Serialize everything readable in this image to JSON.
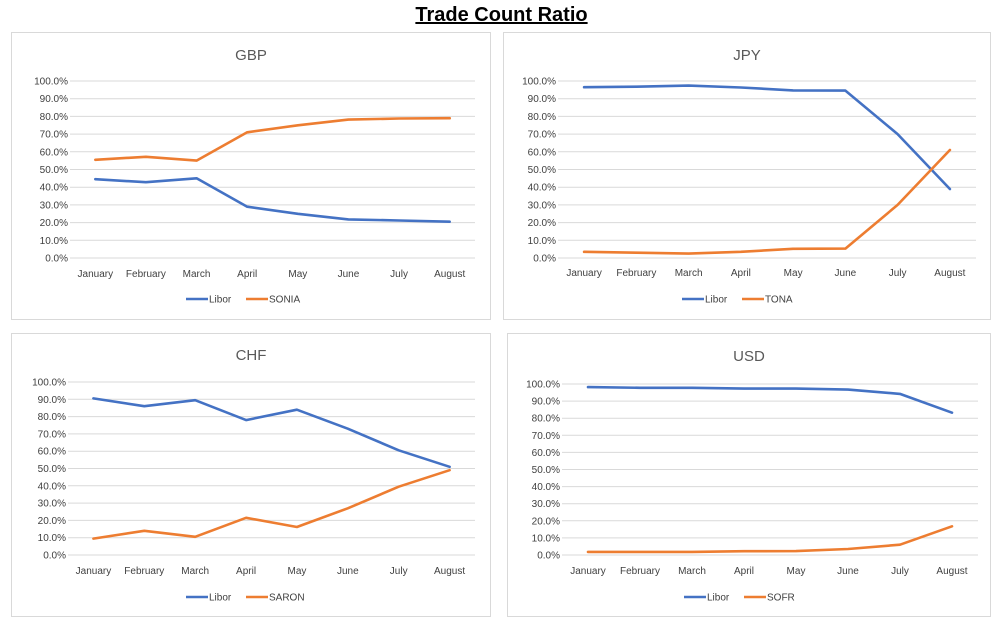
{
  "title": "Trade Count Ratio",
  "colors": {
    "libor": "#4472c4",
    "rfr": "#ed7d31"
  },
  "chart_data": [
    {
      "type": "line",
      "title": "GBP",
      "categories": [
        "January",
        "February",
        "March",
        "April",
        "May",
        "June",
        "July",
        "August"
      ],
      "y_ticks": [
        "0.0%",
        "10.0%",
        "20.0%",
        "30.0%",
        "40.0%",
        "50.0%",
        "60.0%",
        "70.0%",
        "80.0%",
        "90.0%",
        "100.0%"
      ],
      "ylim": [
        0,
        100
      ],
      "legend_position": "bottom",
      "series": [
        {
          "name": "Libor",
          "values": [
            44.5,
            42.8,
            45.0,
            29.0,
            25.0,
            21.8,
            21.2,
            20.5
          ]
        },
        {
          "name": "SONIA",
          "values": [
            55.5,
            57.2,
            55.0,
            71.0,
            75.0,
            78.2,
            78.8,
            79.0
          ]
        }
      ]
    },
    {
      "type": "line",
      "title": "JPY",
      "categories": [
        "January",
        "February",
        "March",
        "April",
        "May",
        "June",
        "July",
        "August"
      ],
      "y_ticks": [
        "0.0%",
        "10.0%",
        "20.0%",
        "30.0%",
        "40.0%",
        "50.0%",
        "60.0%",
        "70.0%",
        "80.0%",
        "90.0%",
        "100.0%"
      ],
      "ylim": [
        0,
        100
      ],
      "legend_position": "bottom",
      "series": [
        {
          "name": "Libor",
          "values": [
            96.5,
            96.8,
            97.4,
            96.3,
            94.7,
            94.6,
            70.0,
            39.0
          ]
        },
        {
          "name": "TONA",
          "values": [
            3.5,
            3.0,
            2.5,
            3.5,
            5.2,
            5.3,
            30.0,
            61.0
          ]
        }
      ]
    },
    {
      "type": "line",
      "title": "CHF",
      "categories": [
        "January",
        "February",
        "March",
        "April",
        "May",
        "June",
        "July",
        "August"
      ],
      "y_ticks": [
        "0.0%",
        "10.0%",
        "20.0%",
        "30.0%",
        "40.0%",
        "50.0%",
        "60.0%",
        "70.0%",
        "80.0%",
        "90.0%",
        "100.0%"
      ],
      "ylim": [
        0,
        100
      ],
      "legend_position": "bottom",
      "series": [
        {
          "name": "Libor",
          "values": [
            90.5,
            86.0,
            89.5,
            78.0,
            84.0,
            73.0,
            60.5,
            51.0
          ]
        },
        {
          "name": "SARON",
          "values": [
            9.5,
            14.0,
            10.5,
            21.5,
            16.2,
            27.0,
            39.5,
            49.0
          ]
        }
      ]
    },
    {
      "type": "line",
      "title": "USD",
      "categories": [
        "January",
        "February",
        "March",
        "April",
        "May",
        "June",
        "July",
        "August"
      ],
      "y_ticks": [
        "0.0%",
        "10.0%",
        "20.0%",
        "30.0%",
        "40.0%",
        "50.0%",
        "60.0%",
        "70.0%",
        "80.0%",
        "90.0%",
        "100.0%"
      ],
      "ylim": [
        0,
        100
      ],
      "legend_position": "bottom",
      "series": [
        {
          "name": "Libor",
          "values": [
            98.2,
            97.8,
            97.8,
            97.3,
            97.3,
            96.7,
            94.2,
            83.2
          ]
        },
        {
          "name": "SOFR",
          "values": [
            1.8,
            1.8,
            1.8,
            2.2,
            2.3,
            3.5,
            6.0,
            16.8
          ]
        }
      ]
    }
  ]
}
